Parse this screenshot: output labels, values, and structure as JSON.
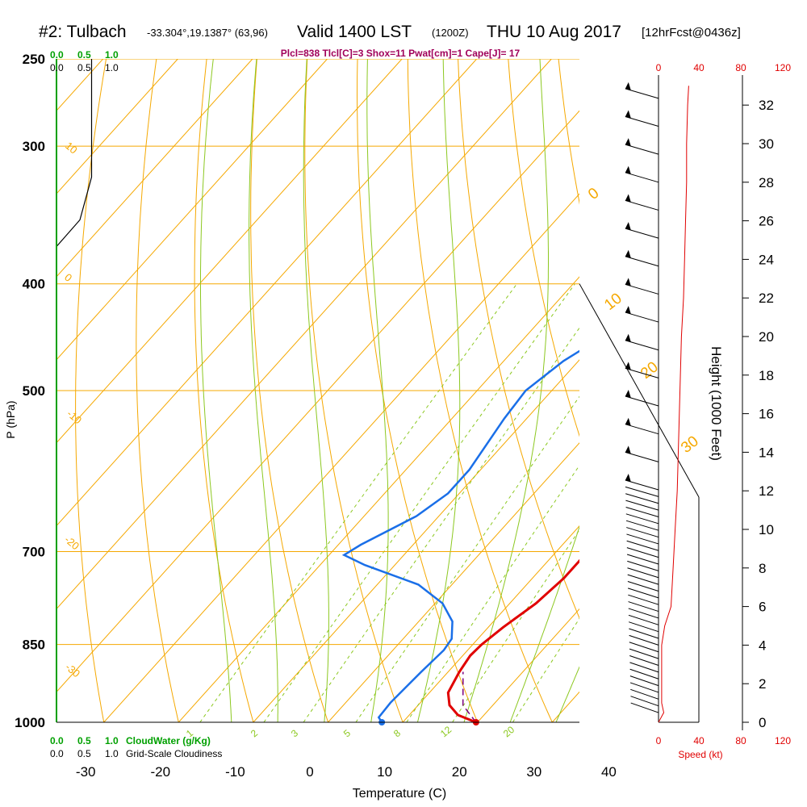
{
  "header": {
    "station": "#2: Tulbach",
    "coords": "-33.304°,19.1387° (63,96)",
    "valid_label": "Valid 1400 LST",
    "zulu": "(1200Z)",
    "date": "THU 10 Aug 2017",
    "forecast": "[12hrFcst@0436z]",
    "indices": "Plcl=838 Tlcl[C]=3 Shox=11 Pwat[cm]=1 Cape[J]= 17"
  },
  "colors": {
    "temperature": "#e00000",
    "dewpoint": "#1a6fe8",
    "isotherm": "#f5a800",
    "dry_adiabat": "#f5a800",
    "moist_adiabat": "#8cc820",
    "mixing_ratio": "#8cc820",
    "cloudwater": "#00a000",
    "wind_speed": "#e00000"
  },
  "chart_data": {
    "type": "line",
    "subtype": "skew-T log-P sounding",
    "xlabel": "Temperature (C)",
    "ylabel": "P (hPa)",
    "right_ylabel": "Height (1000 Feet)",
    "x_ticks": [
      -30,
      -20,
      -10,
      0,
      10,
      20,
      30,
      40
    ],
    "pressure_ticks": [
      250,
      300,
      400,
      500,
      700,
      850,
      1000
    ],
    "height_ticks": [
      0,
      2,
      4,
      6,
      8,
      10,
      12,
      14,
      16,
      18,
      20,
      22,
      24,
      26,
      28,
      30,
      32
    ],
    "series": [
      {
        "name": "temperature",
        "points": [
          [
            1000,
            19.8
          ],
          [
            985,
            16.5
          ],
          [
            965,
            14.2
          ],
          [
            940,
            12.5
          ],
          [
            900,
            11.5
          ],
          [
            870,
            11.0
          ],
          [
            850,
            11.2
          ],
          [
            820,
            12.0
          ],
          [
            780,
            13.5
          ],
          [
            740,
            14.2
          ],
          [
            705,
            14.2
          ],
          [
            670,
            13.5
          ],
          [
            620,
            12.0
          ],
          [
            560,
            9.5
          ],
          [
            500,
            6.0
          ],
          [
            440,
            1.8
          ],
          [
            400,
            -1.8
          ],
          [
            350,
            -7.0
          ],
          [
            300,
            -13.5
          ],
          [
            265,
            -18.5
          ]
        ]
      },
      {
        "name": "dewpoint",
        "points": [
          [
            1000,
            7.2
          ],
          [
            990,
            6.2
          ],
          [
            960,
            6.0
          ],
          [
            900,
            6.4
          ],
          [
            860,
            6.8
          ],
          [
            840,
            6.5
          ],
          [
            810,
            4.5
          ],
          [
            780,
            1.0
          ],
          [
            750,
            -4.5
          ],
          [
            720,
            -14.0
          ],
          [
            705,
            -18.0
          ],
          [
            690,
            -17.0
          ],
          [
            650,
            -13.0
          ],
          [
            620,
            -11.5
          ],
          [
            590,
            -11.5
          ],
          [
            530,
            -13.0
          ],
          [
            500,
            -13.5
          ],
          [
            470,
            -12.0
          ],
          [
            440,
            -9.0
          ],
          [
            400,
            -4.0
          ],
          [
            370,
            -2.0
          ],
          [
            350,
            -0.5
          ],
          [
            300,
            -4.0
          ],
          [
            265,
            -7.5
          ]
        ]
      },
      {
        "name": "parcel",
        "points": [
          [
            1000,
            19.8
          ],
          [
            965,
            16.0
          ],
          [
            900,
            12.0
          ]
        ]
      }
    ],
    "surface_temperature_marker": 19.8,
    "surface_dewpoint_marker": 7.2,
    "wind_speed_axis": {
      "label": "Speed (kt)",
      "ticks": [
        0,
        40,
        80,
        120
      ]
    },
    "wind_speed_profile": [
      [
        0,
        0
      ],
      [
        0.5,
        5
      ],
      [
        1,
        3
      ],
      [
        2,
        3
      ],
      [
        3,
        3
      ],
      [
        4,
        3
      ],
      [
        5,
        6
      ],
      [
        6,
        12
      ],
      [
        8,
        14
      ],
      [
        10,
        16
      ],
      [
        12,
        18
      ],
      [
        14,
        19
      ],
      [
        16,
        20
      ],
      [
        18,
        21
      ],
      [
        20,
        22
      ],
      [
        22,
        24
      ],
      [
        24,
        25
      ],
      [
        26,
        26
      ],
      [
        28,
        27
      ],
      [
        30,
        27
      ],
      [
        32,
        28
      ],
      [
        33,
        29
      ]
    ],
    "cloud_axes": {
      "cloudwater_label": "CloudWater (g/Kg)",
      "cloudiness_label": "Grid-Scale Cloudiness",
      "ticks": [
        "0.0",
        "0.5",
        "1.0"
      ]
    },
    "cloudiness_profile": [
      [
        250,
        0.6
      ],
      [
        320,
        0.6
      ],
      [
        350,
        0.4
      ],
      [
        370,
        0.0
      ]
    ],
    "dry_adiabat_labels": [
      "10",
      "0",
      "-10",
      "-20",
      "-30"
    ],
    "moist_adiabat_labels": [
      "0",
      "10",
      "20",
      "30"
    ],
    "mixing_ratio_labels": [
      "1",
      "2",
      "3",
      "5",
      "8",
      "12",
      "20"
    ]
  }
}
